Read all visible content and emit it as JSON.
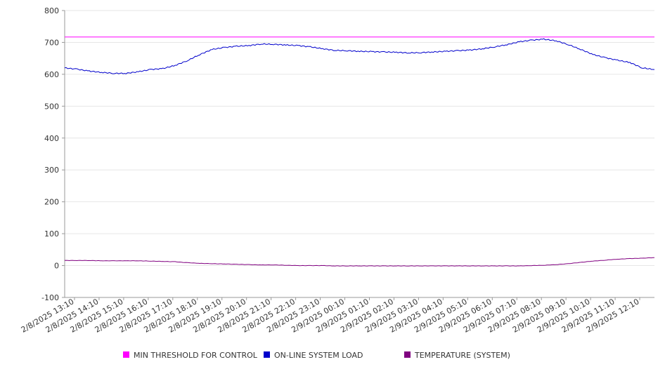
{
  "chart_data": {
    "type": "line",
    "title": "",
    "xlabel": "",
    "ylabel": "",
    "ylim": [
      -100,
      800
    ],
    "yticks": [
      -100,
      0,
      100,
      200,
      300,
      400,
      500,
      600,
      700,
      800
    ],
    "grid": true,
    "legend_position": "bottom",
    "x_tick_labels": [
      "2/8/2025 13:10",
      "2/8/2025 14:10",
      "2/8/2025 15:10",
      "2/8/2025 16:10",
      "2/8/2025 17:10",
      "2/8/2025 18:10",
      "2/8/2025 19:10",
      "2/8/2025 20:10",
      "2/8/2025 21:10",
      "2/8/2025 22:10",
      "2/8/2025 23:10",
      "2/9/2025 00:10",
      "2/9/2025 01:10",
      "2/9/2025 02:10",
      "2/9/2025 03:10",
      "2/9/2025 04:10",
      "2/9/2025 05:10",
      "2/9/2025 06:10",
      "2/9/2025 07:10",
      "2/9/2025 08:10",
      "2/9/2025 09:10",
      "2/9/2025 10:10",
      "2/9/2025 11:10",
      "2/9/2025 12:10"
    ],
    "x_hours": [
      0,
      0.5,
      1,
      1.5,
      2,
      2.5,
      3,
      3.5,
      4,
      4.5,
      5,
      5.5,
      6,
      6.5,
      7,
      7.5,
      8,
      8.5,
      9,
      9.5,
      10,
      10.5,
      11,
      11.5,
      12,
      12.5,
      13,
      13.5,
      14,
      14.5,
      15,
      15.5,
      16,
      16.5,
      17,
      17.5,
      18,
      18.5,
      19,
      19.5,
      20,
      20.5,
      21,
      21.5,
      22,
      22.5,
      23,
      23.5,
      24
    ],
    "series": [
      {
        "name": "MIN THRESHOLD FOR CONTROL",
        "color": "#ff00ff",
        "values": [
          717,
          717,
          717,
          717,
          717,
          717,
          717,
          717,
          717,
          717,
          717,
          717,
          717,
          717,
          717,
          717,
          717,
          717,
          717,
          717,
          717,
          717,
          717,
          717,
          717,
          717,
          717,
          717,
          717,
          717,
          717,
          717,
          717,
          717,
          717,
          717,
          717,
          717,
          717,
          717,
          717,
          717,
          717,
          717,
          717,
          717,
          717,
          717,
          717
        ]
      },
      {
        "name": "ON-LINE SYSTEM LOAD",
        "color": "#0000cc",
        "values": [
          620,
          616,
          610,
          606,
          603,
          603,
          608,
          615,
          618,
          628,
          643,
          662,
          678,
          684,
          688,
          690,
          695,
          694,
          692,
          690,
          686,
          680,
          675,
          674,
          672,
          671,
          670,
          669,
          667,
          668,
          670,
          672,
          674,
          676,
          680,
          686,
          693,
          702,
          707,
          710,
          705,
          693,
          678,
          662,
          652,
          644,
          637,
          620,
          615
        ]
      },
      {
        "name": "TEMPERATURE (SYSTEM)",
        "color": "#800080",
        "values": [
          16,
          16,
          16,
          15,
          15,
          15,
          15,
          14,
          13,
          12,
          9,
          7,
          6,
          5,
          4,
          3,
          2,
          2,
          1,
          0,
          0,
          0,
          -1,
          -1,
          -1,
          -1,
          -1,
          -1,
          -1,
          -1,
          -1,
          -1,
          -1,
          -1,
          -1,
          -1,
          -1,
          -1,
          0,
          1,
          3,
          6,
          10,
          14,
          17,
          20,
          22,
          23,
          25
        ]
      }
    ]
  }
}
